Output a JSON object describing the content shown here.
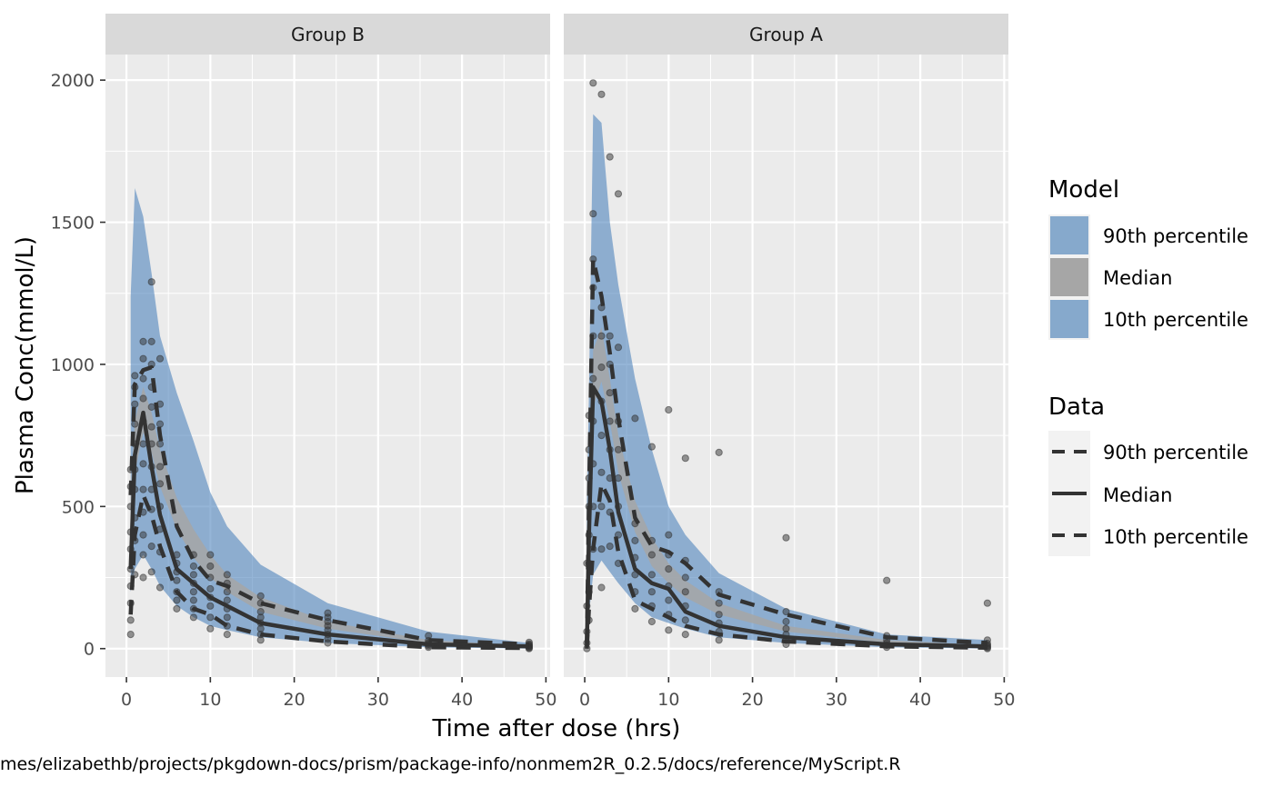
{
  "chart_data": {
    "type": "line",
    "xlabel": "Time after dose (hrs)",
    "ylabel": "Plasma Conc(mmol/L)",
    "caption": "mes/elizabethb/projects/pkgdown-docs/prism/package-info/nonmem2R_0.2.5/docs/reference/MyScript.R",
    "xlim": [
      -2.5,
      50.5
    ],
    "ylim": [
      -100,
      2090
    ],
    "x_ticks": [
      0,
      10,
      20,
      30,
      40,
      50
    ],
    "y_ticks": [
      0,
      500,
      1000,
      1500,
      2000
    ],
    "grid": true,
    "legend_position": "right",
    "colors": {
      "band_outer": "#4f84bc",
      "band_median": "#a6a6a6",
      "lines": "#333333",
      "points": "#333333",
      "panel_bg": "#ebebeb",
      "strip_bg": "#d9d9d9"
    },
    "legend": {
      "model": {
        "title": "Model",
        "entries": [
          {
            "label": "90th percentile",
            "fill": "#86a9cc"
          },
          {
            "label": "Median",
            "fill": "#a6a6a6"
          },
          {
            "label": "10th percentile",
            "fill": "#86a9cc"
          }
        ]
      },
      "data": {
        "title": "Data",
        "entries": [
          {
            "label": "90th percentile",
            "linetype": "dashed"
          },
          {
            "label": "Median",
            "linetype": "solid"
          },
          {
            "label": "10th percentile",
            "linetype": "dashed"
          }
        ]
      }
    },
    "panels": [
      {
        "label": "Group B",
        "model_bands": {
          "x": [
            0.5,
            1,
            2,
            3,
            4,
            6,
            8,
            10,
            12,
            16,
            24,
            36,
            48
          ],
          "p90_upper": [
            1240,
            1620,
            1520,
            1320,
            1100,
            900,
            730,
            550,
            430,
            295,
            160,
            60,
            20
          ],
          "p90_lower": [
            200,
            280,
            330,
            280,
            220,
            150,
            110,
            80,
            65,
            40,
            20,
            5,
            0
          ],
          "median_upper": [
            560,
            800,
            920,
            830,
            700,
            530,
            420,
            330,
            260,
            180,
            95,
            30,
            10
          ],
          "median_lower": [
            400,
            620,
            760,
            690,
            570,
            420,
            320,
            250,
            200,
            130,
            70,
            20,
            5
          ]
        },
        "observed_lines": {
          "x": [
            0.5,
            1,
            2,
            3,
            4,
            6,
            8,
            10,
            12,
            16,
            24,
            36,
            48
          ],
          "p90": [
            540,
            930,
            980,
            990,
            750,
            430,
            310,
            240,
            220,
            160,
            100,
            30,
            15
          ],
          "median": [
            280,
            680,
            830,
            640,
            470,
            280,
            230,
            180,
            150,
            90,
            50,
            15,
            8
          ],
          "p10": [
            120,
            400,
            540,
            470,
            360,
            200,
            140,
            120,
            80,
            50,
            25,
            5,
            2
          ]
        },
        "points": [
          [
            0.5,
            50
          ],
          [
            0.5,
            100
          ],
          [
            0.5,
            160
          ],
          [
            0.5,
            220
          ],
          [
            0.5,
            280
          ],
          [
            0.5,
            350
          ],
          [
            0.5,
            410
          ],
          [
            0.5,
            500
          ],
          [
            0.5,
            570
          ],
          [
            0.5,
            630
          ],
          [
            1,
            260
          ],
          [
            1,
            380
          ],
          [
            1,
            460
          ],
          [
            1,
            560
          ],
          [
            1,
            630
          ],
          [
            1,
            720
          ],
          [
            1,
            790
          ],
          [
            1,
            860
          ],
          [
            1,
            920
          ],
          [
            1,
            960
          ],
          [
            2,
            250
          ],
          [
            2,
            330
          ],
          [
            2,
            400
          ],
          [
            2,
            480
          ],
          [
            2,
            560
          ],
          [
            2,
            650
          ],
          [
            2,
            720
          ],
          [
            2,
            800
          ],
          [
            2,
            880
          ],
          [
            2,
            950
          ],
          [
            2,
            1020
          ],
          [
            2,
            1080
          ],
          [
            3,
            270
          ],
          [
            3,
            360
          ],
          [
            3,
            490
          ],
          [
            3,
            560
          ],
          [
            3,
            640
          ],
          [
            3,
            720
          ],
          [
            3,
            780
          ],
          [
            3,
            850
          ],
          [
            3,
            920
          ],
          [
            3,
            1000
          ],
          [
            3,
            1080
          ],
          [
            3,
            1290
          ],
          [
            4,
            215
          ],
          [
            4,
            340
          ],
          [
            4,
            420
          ],
          [
            4,
            500
          ],
          [
            4,
            580
          ],
          [
            4,
            640
          ],
          [
            4,
            720
          ],
          [
            4,
            790
          ],
          [
            4,
            860
          ],
          [
            4,
            1020
          ],
          [
            6,
            140
          ],
          [
            6,
            170
          ],
          [
            6,
            200
          ],
          [
            6,
            240
          ],
          [
            6,
            270
          ],
          [
            6,
            300
          ],
          [
            6,
            330
          ],
          [
            8,
            110
          ],
          [
            8,
            140
          ],
          [
            8,
            170
          ],
          [
            8,
            200
          ],
          [
            8,
            230
          ],
          [
            8,
            260
          ],
          [
            8,
            290
          ],
          [
            8,
            330
          ],
          [
            10,
            70
          ],
          [
            10,
            110
          ],
          [
            10,
            150
          ],
          [
            10,
            180
          ],
          [
            10,
            210
          ],
          [
            10,
            250
          ],
          [
            10,
            290
          ],
          [
            10,
            330
          ],
          [
            12,
            50
          ],
          [
            12,
            80
          ],
          [
            12,
            110
          ],
          [
            12,
            140
          ],
          [
            12,
            170
          ],
          [
            12,
            200
          ],
          [
            12,
            230
          ],
          [
            12,
            260
          ],
          [
            16,
            30
          ],
          [
            16,
            50
          ],
          [
            16,
            70
          ],
          [
            16,
            90
          ],
          [
            16,
            110
          ],
          [
            16,
            130
          ],
          [
            16,
            160
          ],
          [
            16,
            185
          ],
          [
            24,
            20
          ],
          [
            24,
            35
          ],
          [
            24,
            50
          ],
          [
            24,
            65
          ],
          [
            24,
            80
          ],
          [
            24,
            95
          ],
          [
            24,
            110
          ],
          [
            24,
            125
          ],
          [
            36,
            5
          ],
          [
            36,
            10
          ],
          [
            36,
            15
          ],
          [
            36,
            20
          ],
          [
            36,
            28
          ],
          [
            36,
            45
          ],
          [
            48,
            0
          ],
          [
            48,
            3
          ],
          [
            48,
            6
          ],
          [
            48,
            9
          ],
          [
            48,
            12
          ],
          [
            48,
            16
          ],
          [
            48,
            22
          ]
        ]
      },
      {
        "label": "Group A",
        "model_bands": {
          "x": [
            0.25,
            0.5,
            1,
            2,
            3,
            4,
            6,
            8,
            10,
            12,
            16,
            24,
            36,
            48
          ],
          "p90_upper": [
            500,
            900,
            1880,
            1850,
            1500,
            1280,
            950,
            700,
            500,
            400,
            265,
            140,
            50,
            30
          ],
          "p90_lower": [
            0,
            120,
            260,
            310,
            270,
            230,
            160,
            110,
            90,
            70,
            40,
            20,
            5,
            0
          ],
          "median_upper": [
            120,
            400,
            1050,
            1130,
            950,
            750,
            520,
            390,
            300,
            240,
            160,
            80,
            30,
            12
          ],
          "median_lower": [
            40,
            260,
            850,
            940,
            800,
            620,
            410,
            290,
            230,
            180,
            120,
            60,
            20,
            6
          ]
        },
        "observed_lines": {
          "x": [
            0.25,
            0.5,
            1,
            2,
            3,
            4,
            6,
            8,
            10,
            12,
            16,
            24,
            36,
            48
          ],
          "p90": [
            20,
            520,
            1370,
            1240,
            1040,
            810,
            460,
            360,
            340,
            300,
            190,
            120,
            40,
            20
          ],
          "median": [
            10,
            400,
            920,
            870,
            700,
            480,
            280,
            230,
            210,
            130,
            80,
            40,
            15,
            8
          ],
          "p10": [
            0,
            140,
            350,
            580,
            520,
            340,
            170,
            140,
            110,
            80,
            50,
            25,
            8,
            3
          ]
        },
        "points": [
          [
            0.25,
            0
          ],
          [
            0.25,
            20
          ],
          [
            0.25,
            60
          ],
          [
            0.25,
            150
          ],
          [
            0.25,
            300
          ],
          [
            0.5,
            100
          ],
          [
            0.5,
            200
          ],
          [
            0.5,
            300
          ],
          [
            0.5,
            400
          ],
          [
            0.5,
            500
          ],
          [
            0.5,
            600
          ],
          [
            0.5,
            700
          ],
          [
            0.5,
            820
          ],
          [
            1,
            350
          ],
          [
            1,
            500
          ],
          [
            1,
            650
          ],
          [
            1,
            800
          ],
          [
            1,
            950
          ],
          [
            1,
            1100
          ],
          [
            1,
            1270
          ],
          [
            1,
            1370
          ],
          [
            1,
            1530
          ],
          [
            1,
            1990
          ],
          [
            2,
            215
          ],
          [
            2,
            350
          ],
          [
            2,
            500
          ],
          [
            2,
            620
          ],
          [
            2,
            750
          ],
          [
            2,
            870
          ],
          [
            2,
            990
          ],
          [
            2,
            1100
          ],
          [
            2,
            1200
          ],
          [
            2,
            1950
          ],
          [
            3,
            360
          ],
          [
            3,
            480
          ],
          [
            3,
            600
          ],
          [
            3,
            700
          ],
          [
            3,
            800
          ],
          [
            3,
            900
          ],
          [
            3,
            1000
          ],
          [
            3,
            1100
          ],
          [
            3,
            1730
          ],
          [
            4,
            300
          ],
          [
            4,
            400
          ],
          [
            4,
            500
          ],
          [
            4,
            600
          ],
          [
            4,
            700
          ],
          [
            4,
            800
          ],
          [
            4,
            1060
          ],
          [
            4,
            1600
          ],
          [
            6,
            140
          ],
          [
            6,
            200
          ],
          [
            6,
            260
          ],
          [
            6,
            320
          ],
          [
            6,
            380
          ],
          [
            6,
            440
          ],
          [
            6,
            810
          ],
          [
            8,
            95
          ],
          [
            8,
            150
          ],
          [
            8,
            200
          ],
          [
            8,
            260
          ],
          [
            8,
            330
          ],
          [
            8,
            380
          ],
          [
            8,
            710
          ],
          [
            10,
            65
          ],
          [
            10,
            120
          ],
          [
            10,
            170
          ],
          [
            10,
            220
          ],
          [
            10,
            280
          ],
          [
            10,
            330
          ],
          [
            10,
            400
          ],
          [
            10,
            840
          ],
          [
            12,
            50
          ],
          [
            12,
            100
          ],
          [
            12,
            150
          ],
          [
            12,
            200
          ],
          [
            12,
            250
          ],
          [
            12,
            310
          ],
          [
            12,
            670
          ],
          [
            16,
            30
          ],
          [
            16,
            60
          ],
          [
            16,
            90
          ],
          [
            16,
            120
          ],
          [
            16,
            160
          ],
          [
            16,
            200
          ],
          [
            16,
            690
          ],
          [
            24,
            15
          ],
          [
            24,
            30
          ],
          [
            24,
            50
          ],
          [
            24,
            70
          ],
          [
            24,
            95
          ],
          [
            24,
            130
          ],
          [
            24,
            390
          ],
          [
            36,
            5
          ],
          [
            36,
            12
          ],
          [
            36,
            20
          ],
          [
            36,
            30
          ],
          [
            36,
            45
          ],
          [
            36,
            240
          ],
          [
            48,
            0
          ],
          [
            48,
            4
          ],
          [
            48,
            8
          ],
          [
            48,
            12
          ],
          [
            48,
            18
          ],
          [
            48,
            30
          ],
          [
            48,
            160
          ]
        ]
      }
    ]
  }
}
